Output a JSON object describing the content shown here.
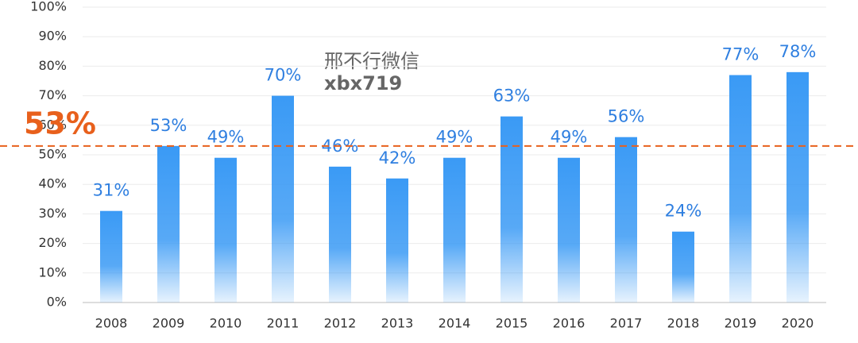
{
  "chart_data": {
    "type": "bar",
    "categories": [
      "2008",
      "2009",
      "2010",
      "2011",
      "2012",
      "2013",
      "2014",
      "2015",
      "2016",
      "2017",
      "2018",
      "2019",
      "2020"
    ],
    "values": [
      31,
      53,
      49,
      70,
      46,
      42,
      49,
      63,
      49,
      56,
      24,
      77,
      78
    ],
    "value_labels": [
      "31%",
      "53%",
      "49%",
      "70%",
      "46%",
      "42%",
      "49%",
      "63%",
      "49%",
      "56%",
      "24%",
      "77%",
      "78%"
    ],
    "color": "#3a9af5",
    "ylim": [
      0,
      100
    ],
    "yticks": [
      {
        "value": 0,
        "label": "0%"
      },
      {
        "value": 10,
        "label": "10%"
      },
      {
        "value": 20,
        "label": "20%"
      },
      {
        "value": 30,
        "label": "30%"
      },
      {
        "value": 40,
        "label": "40%"
      },
      {
        "value": 50,
        "label": "50%"
      },
      {
        "value": 60,
        "label": "60%"
      },
      {
        "value": 70,
        "label": "70%"
      },
      {
        "value": 80,
        "label": "80%"
      },
      {
        "value": 90,
        "label": "90%"
      },
      {
        "value": 100,
        "label": "100%"
      }
    ],
    "grid": true,
    "reference_line": {
      "value": 53,
      "label": "53%",
      "color": "#e8601c"
    },
    "annotations": [
      "邢不行微信",
      "xbx719"
    ]
  }
}
